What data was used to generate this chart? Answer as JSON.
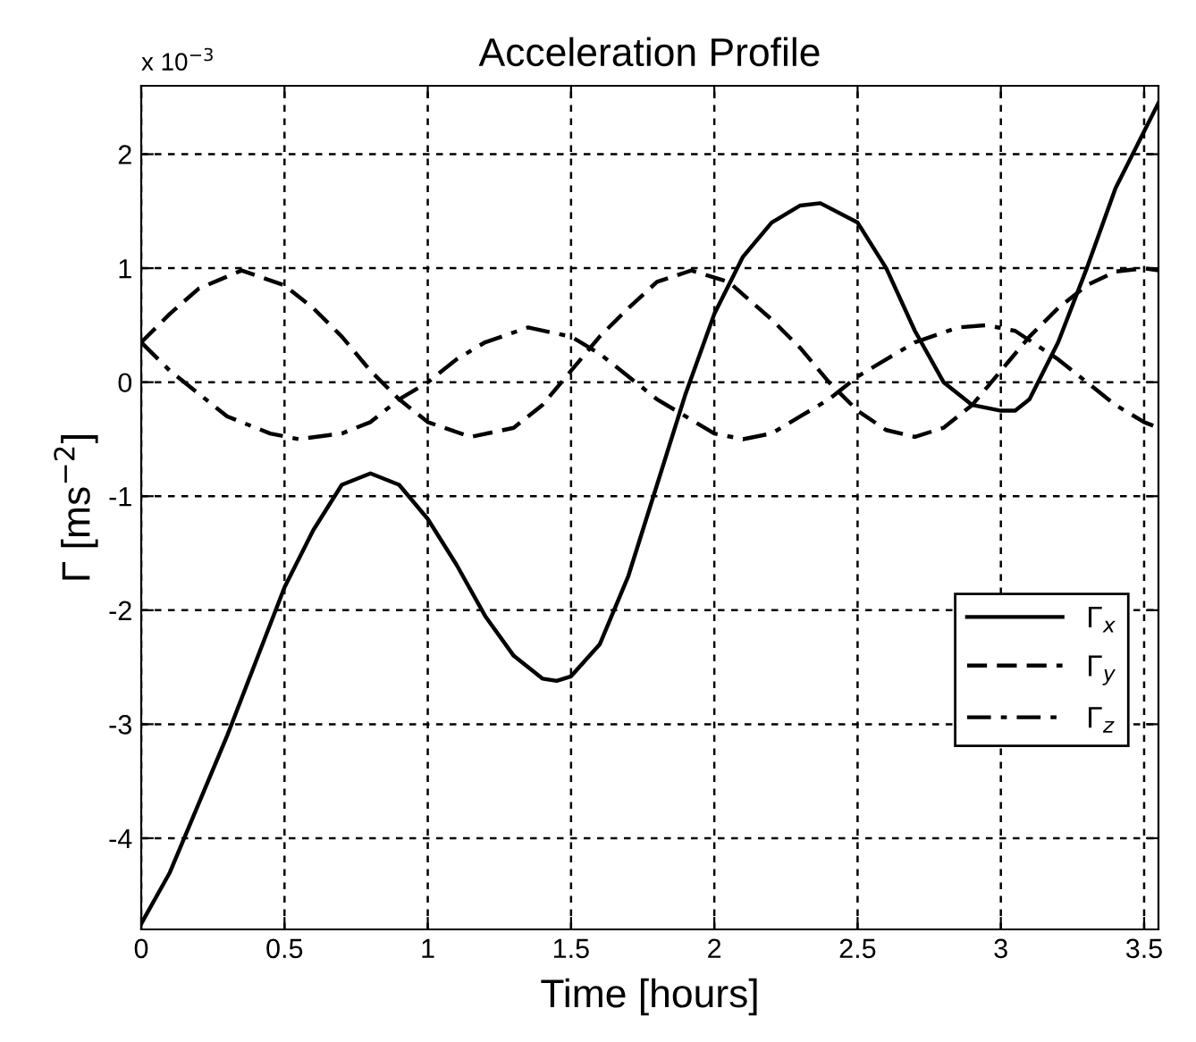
{
  "chart_data": {
    "type": "line",
    "title": "Acceleration Profile",
    "xlabel": "Time [hours]",
    "ylabel": "Γ [ms$^{−2}$]",
    "annotations": [
      "x 10$^{−3}$"
    ],
    "xlim": [
      0,
      3.55
    ],
    "ylim": [
      -4.8,
      2.6
    ],
    "xticks": [
      0,
      0.5,
      1,
      1.5,
      2,
      2.5,
      3,
      3.5
    ],
    "yticks": [
      -4,
      -3,
      -2,
      -1,
      0,
      1,
      2
    ],
    "grid": true,
    "legend": "bottom right",
    "series": [
      {
        "name": "Γ$_{x}$",
        "color": "#000000",
        "line_style": "solid",
        "x": [
          0,
          0.1,
          0.2,
          0.3,
          0.4,
          0.5,
          0.6,
          0.7,
          0.8,
          0.9,
          1.0,
          1.1,
          1.2,
          1.3,
          1.4,
          1.45,
          1.5,
          1.6,
          1.7,
          1.8,
          1.9,
          2.0,
          2.1,
          2.2,
          2.3,
          2.37,
          2.5,
          2.6,
          2.7,
          2.8,
          2.9,
          3.0,
          3.05,
          3.1,
          3.2,
          3.3,
          3.4,
          3.5,
          3.55
        ],
        "values": [
          -4.75,
          -4.3,
          -3.7,
          -3.1,
          -2.45,
          -1.8,
          -1.3,
          -0.9,
          -0.8,
          -0.9,
          -1.2,
          -1.6,
          -2.05,
          -2.4,
          -2.6,
          -2.62,
          -2.58,
          -2.3,
          -1.7,
          -0.9,
          -0.1,
          0.6,
          1.1,
          1.4,
          1.55,
          1.57,
          1.4,
          1.0,
          0.45,
          0.0,
          -0.2,
          -0.25,
          -0.25,
          -0.15,
          0.35,
          1.0,
          1.7,
          2.2,
          2.45
        ]
      },
      {
        "name": "Γ$_{y}$",
        "color": "#000000",
        "line_style": "dashed",
        "x": [
          0,
          0.1,
          0.2,
          0.35,
          0.5,
          0.6,
          0.7,
          0.8,
          0.9,
          1.0,
          1.15,
          1.3,
          1.4,
          1.5,
          1.6,
          1.7,
          1.8,
          1.92,
          2.05,
          2.2,
          2.3,
          2.4,
          2.5,
          2.6,
          2.7,
          2.8,
          2.9,
          3.0,
          3.1,
          3.2,
          3.3,
          3.4,
          3.5,
          3.55
        ],
        "values": [
          0.35,
          0.6,
          0.82,
          0.98,
          0.85,
          0.65,
          0.4,
          0.1,
          -0.15,
          -0.35,
          -0.48,
          -0.4,
          -0.2,
          0.1,
          0.4,
          0.65,
          0.88,
          0.98,
          0.88,
          0.55,
          0.3,
          0.0,
          -0.25,
          -0.42,
          -0.48,
          -0.4,
          -0.2,
          0.1,
          0.4,
          0.65,
          0.85,
          0.97,
          1.0,
          0.98
        ]
      },
      {
        "name": "Γ$_{z}$",
        "color": "#000000",
        "line_style": "dashdot",
        "x": [
          0,
          0.1,
          0.2,
          0.3,
          0.45,
          0.55,
          0.7,
          0.8,
          0.9,
          1.0,
          1.1,
          1.2,
          1.35,
          1.5,
          1.6,
          1.7,
          1.8,
          1.9,
          2.0,
          2.1,
          2.2,
          2.3,
          2.4,
          2.5,
          2.6,
          2.7,
          2.85,
          2.95,
          3.05,
          3.2,
          3.3,
          3.4,
          3.5,
          3.55
        ],
        "values": [
          0.35,
          0.1,
          -0.1,
          -0.3,
          -0.45,
          -0.5,
          -0.45,
          -0.35,
          -0.15,
          0.0,
          0.2,
          0.35,
          0.48,
          0.4,
          0.25,
          0.05,
          -0.15,
          -0.3,
          -0.45,
          -0.5,
          -0.45,
          -0.3,
          -0.15,
          0.05,
          0.2,
          0.35,
          0.48,
          0.5,
          0.45,
          0.2,
          0.0,
          -0.2,
          -0.35,
          -0.4
        ]
      }
    ]
  }
}
